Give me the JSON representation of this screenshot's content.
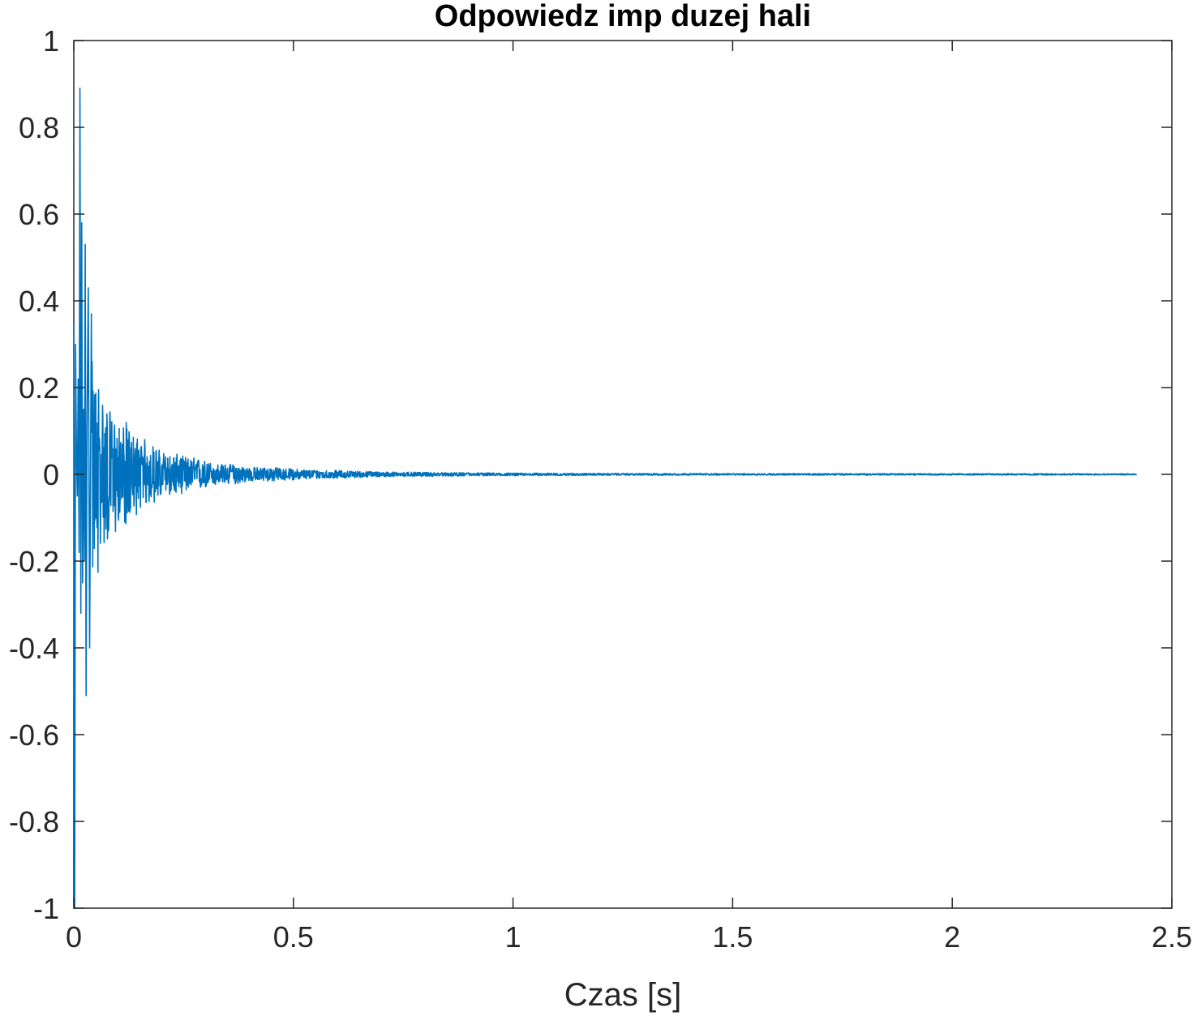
{
  "chart_data": {
    "type": "line",
    "title": "Odpowiedz imp duzej hali",
    "xlabel": "Czas [s]",
    "ylabel": "",
    "xlim": [
      0,
      2.5
    ],
    "ylim": [
      -1,
      1
    ],
    "xticks": [
      0,
      0.5,
      1,
      1.5,
      2,
      2.5
    ],
    "xtick_labels": [
      "0",
      "0.5",
      "1",
      "1.5",
      "2",
      "2.5"
    ],
    "yticks": [
      -1,
      -0.8,
      -0.6,
      -0.4,
      -0.2,
      0,
      0.2,
      0.4,
      0.6,
      0.8,
      1
    ],
    "ytick_labels": [
      "-1",
      "-0.8",
      "-0.6",
      "-0.4",
      "-0.2",
      "0",
      "0.2",
      "0.4",
      "0.6",
      "0.8",
      "1"
    ],
    "grid": false,
    "box": true,
    "line_color": "#0072BD",
    "series": [
      {
        "x": [
          0,
          0.002,
          0.004,
          0.006,
          0.008,
          0.01,
          0.012,
          0.014,
          0.016,
          0.018,
          0.02,
          0.022,
          0.024,
          0.026,
          0.028,
          0.03,
          0.033,
          0.036,
          0.04,
          0.045,
          0.05,
          0.055,
          0.06,
          0.065,
          0.07,
          0.075,
          0.08,
          0.085,
          0.09,
          0.095,
          0.1,
          0.11,
          0.12,
          0.13,
          0.14,
          0.15,
          0.16,
          0.17,
          0.18,
          0.19,
          0.2,
          0.22,
          0.24,
          0.26,
          0.28,
          0.3,
          0.33,
          0.36,
          0.4,
          0.45,
          0.5,
          0.55,
          0.6,
          0.65,
          0.7,
          0.75,
          0.8,
          0.9,
          1.0,
          1.1,
          1.2,
          1.4,
          1.6,
          1.8,
          2.0,
          2.2,
          2.42
        ],
        "y": [
          0.35,
          -1.0,
          0.3,
          0.05,
          -0.05,
          0.22,
          -0.18,
          0.89,
          -0.32,
          0.58,
          -0.25,
          0.15,
          -0.2,
          0.53,
          -0.51,
          0.1,
          0.43,
          -0.4,
          0.37,
          -0.3,
          0.29,
          -0.35,
          0.22,
          -0.26,
          0.21,
          -0.22,
          0.2,
          -0.18,
          0.17,
          -0.2,
          0.14,
          -0.15,
          0.16,
          -0.12,
          0.13,
          -0.1,
          0.11,
          -0.09,
          0.09,
          -0.08,
          0.07,
          -0.06,
          0.06,
          -0.05,
          0.05,
          -0.04,
          0.03,
          -0.03,
          0.02,
          -0.02,
          0.015,
          -0.012,
          0.01,
          -0.008,
          0.006,
          -0.005,
          0.004,
          -0.003,
          0.002,
          -0.0015,
          0.001,
          -0.0008,
          0.0006,
          -0.0004,
          0.0003,
          -0.0002,
          0.0
        ]
      }
    ]
  }
}
